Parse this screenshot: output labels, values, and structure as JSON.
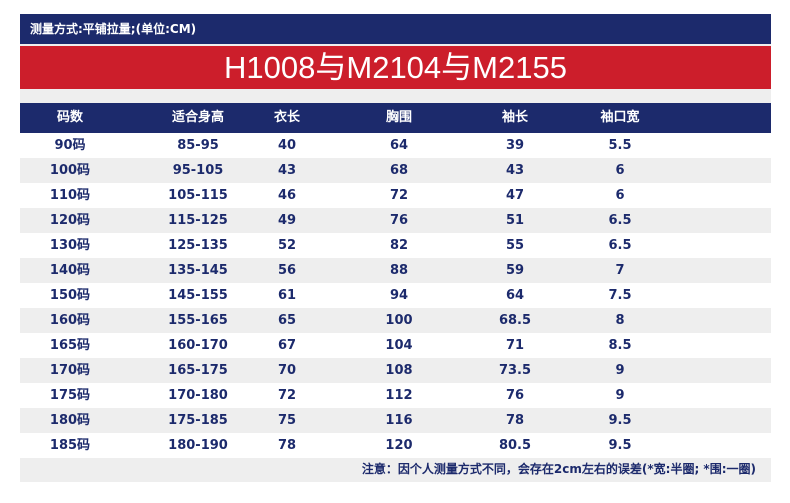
{
  "header": {
    "measure_note": "测量方式:平铺拉量;(单位:CM)"
  },
  "title": "H1008与M2104与M2155",
  "columns": [
    "码数",
    "适合身高",
    "衣长",
    "胸围",
    "袖长",
    "袖口宽"
  ],
  "rows": [
    [
      "90码",
      "85-95",
      "40",
      "64",
      "39",
      "5.5"
    ],
    [
      "100码",
      "95-105",
      "43",
      "68",
      "43",
      "6"
    ],
    [
      "110码",
      "105-115",
      "46",
      "72",
      "47",
      "6"
    ],
    [
      "120码",
      "115-125",
      "49",
      "76",
      "51",
      "6.5"
    ],
    [
      "130码",
      "125-135",
      "52",
      "82",
      "55",
      "6.5"
    ],
    [
      "140码",
      "135-145",
      "56",
      "88",
      "59",
      "7"
    ],
    [
      "150码",
      "145-155",
      "61",
      "94",
      "64",
      "7.5"
    ],
    [
      "160码",
      "155-165",
      "65",
      "100",
      "68.5",
      "8"
    ],
    [
      "165码",
      "160-170",
      "67",
      "104",
      "71",
      "8.5"
    ],
    [
      "170码",
      "165-175",
      "70",
      "108",
      "73.5",
      "9"
    ],
    [
      "175码",
      "170-180",
      "72",
      "112",
      "76",
      "9"
    ],
    [
      "180码",
      "175-185",
      "75",
      "116",
      "78",
      "9.5"
    ],
    [
      "185码",
      "180-190",
      "78",
      "120",
      "80.5",
      "9.5"
    ]
  ],
  "footnote": "注意：因个人测量方式不同，会存在2cm左右的误差(*宽:半圈; *围:一圈)",
  "colors": {
    "navy": "#1c2a6c",
    "red": "#cc1e2b",
    "row_alt": "#eeeeee"
  }
}
